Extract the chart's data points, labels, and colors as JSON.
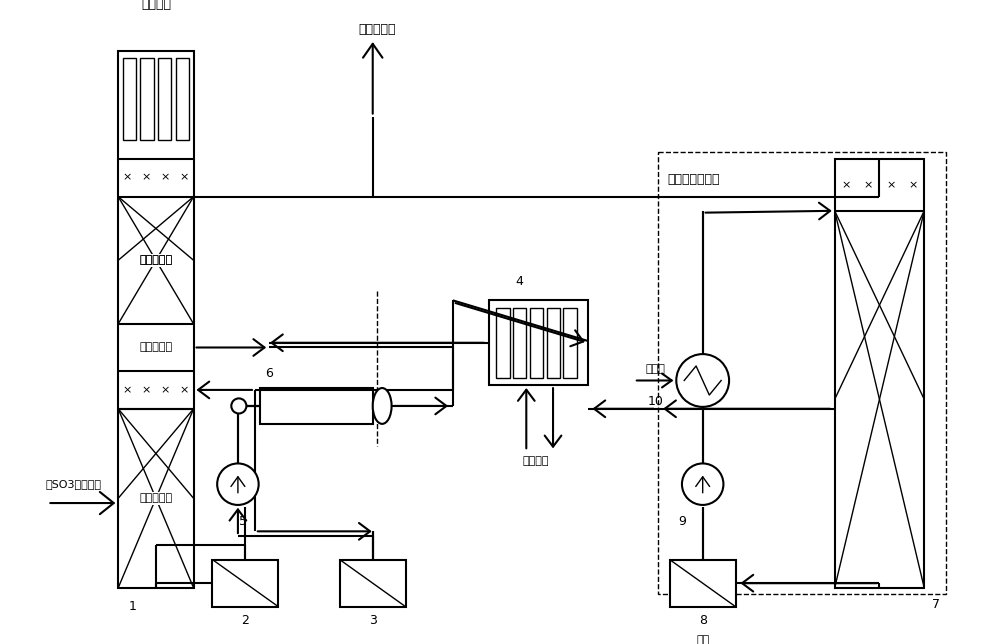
{
  "bg_color": "#ffffff",
  "labels": {
    "process_gas_top": "工艺气体",
    "low_pressure_steam": "低压蒸汽出",
    "low_temp_section": "低温吸收段",
    "gas_liquid_sep": "气液分离段",
    "high_temp_section": "高温吸收段",
    "so3_gas": "含SO3工艺气体",
    "dry_system": "干燥或二吸系统",
    "cooling_water": "冷却水",
    "low_pressure_water": "低压给水",
    "sulfuric_acid": "硫酸",
    "num1": "1",
    "num2": "2",
    "num3": "3",
    "num4": "4",
    "num5": "5",
    "num6": "6",
    "num7": "7",
    "num8": "8",
    "num9": "9",
    "num10": "10"
  }
}
